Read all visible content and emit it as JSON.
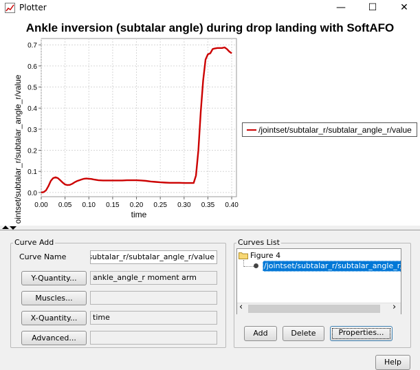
{
  "window": {
    "title": "Plotter",
    "minimize_glyph": "—",
    "maximize_glyph": "☐",
    "close_glyph": "✕"
  },
  "chart_data": {
    "type": "line",
    "title": "Ankle inversion (subtalar angle) during drop landing with SoftAFO",
    "xlabel": "time",
    "ylabel": "/jointset/subtalar_r/subtalar_angle_r/value",
    "xlim": [
      0.0,
      0.41
    ],
    "ylim": [
      -0.02,
      0.73
    ],
    "x_ticks": [
      "0.00",
      "0.05",
      "0.10",
      "0.15",
      "0.20",
      "0.25",
      "0.30",
      "0.35",
      "0.40"
    ],
    "y_ticks": [
      "0.0",
      "0.1",
      "0.2",
      "0.3",
      "0.4",
      "0.5",
      "0.6",
      "0.7"
    ],
    "grid": true,
    "legend_position": "right",
    "series": [
      {
        "name": "/jointset/subtalar_r/subtalar_angle_r/value",
        "color": "#cc0000",
        "x": [
          0.0,
          0.005,
          0.01,
          0.015,
          0.02,
          0.025,
          0.03,
          0.035,
          0.04,
          0.045,
          0.05,
          0.055,
          0.06,
          0.065,
          0.07,
          0.075,
          0.08,
          0.085,
          0.09,
          0.095,
          0.1,
          0.105,
          0.11,
          0.12,
          0.13,
          0.14,
          0.15,
          0.16,
          0.17,
          0.18,
          0.19,
          0.2,
          0.21,
          0.22,
          0.23,
          0.24,
          0.25,
          0.26,
          0.27,
          0.28,
          0.29,
          0.3,
          0.31,
          0.32,
          0.325,
          0.33,
          0.335,
          0.34,
          0.345,
          0.35,
          0.355,
          0.36,
          0.365,
          0.37,
          0.375,
          0.38,
          0.385,
          0.39,
          0.395,
          0.4
        ],
        "y": [
          0.0,
          0.002,
          0.01,
          0.03,
          0.055,
          0.068,
          0.072,
          0.068,
          0.058,
          0.047,
          0.038,
          0.035,
          0.036,
          0.041,
          0.048,
          0.054,
          0.058,
          0.062,
          0.065,
          0.066,
          0.065,
          0.064,
          0.062,
          0.058,
          0.057,
          0.057,
          0.057,
          0.057,
          0.057,
          0.058,
          0.058,
          0.058,
          0.057,
          0.055,
          0.052,
          0.05,
          0.048,
          0.047,
          0.046,
          0.046,
          0.046,
          0.045,
          0.045,
          0.045,
          0.08,
          0.2,
          0.38,
          0.53,
          0.63,
          0.655,
          0.66,
          0.68,
          0.683,
          0.685,
          0.685,
          0.685,
          0.688,
          0.68,
          0.668,
          0.66
        ]
      }
    ]
  },
  "curve_add": {
    "group_label": "Curve Add",
    "curve_name_label": "Curve Name",
    "curve_name_value": "/jointset/subtalar_r/subtalar_angle_r/value",
    "y_quantity_button": "Y-Quantity...",
    "y_quantity_value": "ankle_angle_r moment arm",
    "muscles_button": "Muscles...",
    "muscles_value": "",
    "x_quantity_button": "X-Quantity...",
    "x_quantity_value": "time",
    "advanced_button": "Advanced...",
    "advanced_value": ""
  },
  "curves_list": {
    "group_label": "Curves List",
    "figure_label": "Figure 4",
    "curve_item": "/jointset/subtalar_r/subtalar_angle_r/value",
    "scroll_left": "‹",
    "scroll_right": "›",
    "add_button": "Add",
    "delete_button": "Delete",
    "properties_button": "Properties..."
  },
  "help_button": "Help"
}
